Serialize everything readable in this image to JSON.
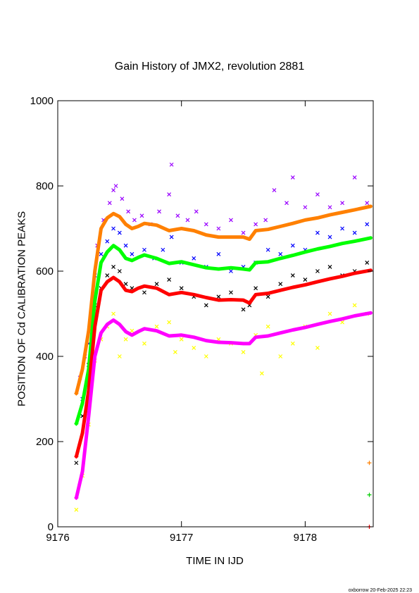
{
  "chart_data": {
    "type": "scatter",
    "title": "Gain History of JMX2, revolution 2881",
    "xlabel": "TIME IN IJD",
    "ylabel": "POSITION OF Cd CALIBRATION PEAKS",
    "xlim": [
      9176.0,
      9178.55
    ],
    "ylim": [
      0,
      1000
    ],
    "x_ticks": [
      9176,
      9177,
      9178
    ],
    "y_ticks": [
      0,
      200,
      400,
      600,
      800,
      1000
    ],
    "grid": false,
    "footer": "oxborrow 20-Feb-2025 22:23",
    "scatter_series": [
      {
        "color": "#9900ff",
        "marker": "x",
        "points": [
          [
            9176.18,
            350
          ],
          [
            9176.22,
            400
          ],
          [
            9176.27,
            470
          ],
          [
            9176.32,
            660
          ],
          [
            9176.37,
            720
          ],
          [
            9176.42,
            760
          ],
          [
            9176.45,
            790
          ],
          [
            9176.47,
            800
          ],
          [
            9176.52,
            770
          ],
          [
            9176.57,
            740
          ],
          [
            9176.62,
            720
          ],
          [
            9176.68,
            730
          ],
          [
            9176.75,
            710
          ],
          [
            9176.82,
            740
          ],
          [
            9176.9,
            780
          ],
          [
            9176.92,
            850
          ],
          [
            9176.97,
            730
          ],
          [
            9177.05,
            720
          ],
          [
            9177.12,
            740
          ],
          [
            9177.2,
            710
          ],
          [
            9177.3,
            700
          ],
          [
            9177.4,
            720
          ],
          [
            9177.5,
            690
          ],
          [
            9177.6,
            710
          ],
          [
            9177.68,
            720
          ],
          [
            9177.75,
            790
          ],
          [
            9177.85,
            760
          ],
          [
            9177.9,
            820
          ],
          [
            9178.0,
            750
          ],
          [
            9178.1,
            780
          ],
          [
            9178.2,
            750
          ],
          [
            9178.3,
            760
          ],
          [
            9178.4,
            820
          ],
          [
            9178.5,
            760
          ]
        ]
      },
      {
        "color": "#0000ff",
        "marker": "x",
        "points": [
          [
            9176.2,
            300
          ],
          [
            9176.25,
            430
          ],
          [
            9176.3,
            590
          ],
          [
            9176.35,
            640
          ],
          [
            9176.4,
            670
          ],
          [
            9176.45,
            700
          ],
          [
            9176.5,
            690
          ],
          [
            9176.55,
            660
          ],
          [
            9176.6,
            640
          ],
          [
            9176.7,
            650
          ],
          [
            9176.78,
            630
          ],
          [
            9176.85,
            650
          ],
          [
            9176.92,
            680
          ],
          [
            9177.0,
            620
          ],
          [
            9177.1,
            630
          ],
          [
            9177.2,
            610
          ],
          [
            9177.3,
            640
          ],
          [
            9177.4,
            600
          ],
          [
            9177.5,
            610
          ],
          [
            9177.6,
            620
          ],
          [
            9177.7,
            650
          ],
          [
            9177.8,
            640
          ],
          [
            9177.9,
            660
          ],
          [
            9178.0,
            650
          ],
          [
            9178.1,
            690
          ],
          [
            9178.2,
            680
          ],
          [
            9178.3,
            700
          ],
          [
            9178.4,
            690
          ],
          [
            9178.5,
            710
          ]
        ]
      },
      {
        "color": "#000000",
        "marker": "x",
        "points": [
          [
            9176.15,
            150
          ],
          [
            9176.2,
            260
          ],
          [
            9176.25,
            380
          ],
          [
            9176.3,
            520
          ],
          [
            9176.35,
            560
          ],
          [
            9176.4,
            590
          ],
          [
            9176.45,
            610
          ],
          [
            9176.5,
            600
          ],
          [
            9176.55,
            570
          ],
          [
            9176.6,
            560
          ],
          [
            9176.7,
            550
          ],
          [
            9176.8,
            570
          ],
          [
            9176.9,
            580
          ],
          [
            9177.0,
            560
          ],
          [
            9177.1,
            540
          ],
          [
            9177.2,
            520
          ],
          [
            9177.3,
            540
          ],
          [
            9177.4,
            550
          ],
          [
            9177.5,
            510
          ],
          [
            9177.55,
            520
          ],
          [
            9177.6,
            560
          ],
          [
            9177.7,
            540
          ],
          [
            9177.8,
            570
          ],
          [
            9177.9,
            590
          ],
          [
            9178.0,
            580
          ],
          [
            9178.1,
            600
          ],
          [
            9178.2,
            610
          ],
          [
            9178.3,
            590
          ],
          [
            9178.4,
            600
          ],
          [
            9178.5,
            620
          ]
        ]
      },
      {
        "color": "#ffff00",
        "marker": "x",
        "points": [
          [
            9176.15,
            40
          ],
          [
            9176.2,
            120
          ],
          [
            9176.25,
            240
          ],
          [
            9176.3,
            390
          ],
          [
            9176.35,
            440
          ],
          [
            9176.4,
            470
          ],
          [
            9176.45,
            500
          ],
          [
            9176.5,
            400
          ],
          [
            9176.55,
            440
          ],
          [
            9176.6,
            460
          ],
          [
            9176.7,
            430
          ],
          [
            9176.8,
            470
          ],
          [
            9176.9,
            480
          ],
          [
            9176.95,
            410
          ],
          [
            9177.0,
            440
          ],
          [
            9177.1,
            420
          ],
          [
            9177.2,
            400
          ],
          [
            9177.3,
            440
          ],
          [
            9177.4,
            430
          ],
          [
            9177.5,
            410
          ],
          [
            9177.6,
            450
          ],
          [
            9177.65,
            360
          ],
          [
            9177.7,
            470
          ],
          [
            9177.8,
            400
          ],
          [
            9177.9,
            430
          ],
          [
            9178.0,
            470
          ],
          [
            9178.1,
            420
          ],
          [
            9178.2,
            500
          ],
          [
            9178.3,
            480
          ],
          [
            9178.4,
            520
          ],
          [
            9178.5,
            500
          ]
        ]
      }
    ],
    "line_series": [
      {
        "color": "#ff8000",
        "marker": "+",
        "width": 5,
        "points": [
          [
            9176.15,
            313
          ],
          [
            9176.2,
            370
          ],
          [
            9176.25,
            460
          ],
          [
            9176.3,
            600
          ],
          [
            9176.35,
            700
          ],
          [
            9176.4,
            725
          ],
          [
            9176.45,
            735
          ],
          [
            9176.5,
            728
          ],
          [
            9176.55,
            710
          ],
          [
            9176.6,
            700
          ],
          [
            9176.65,
            705
          ],
          [
            9176.7,
            712
          ],
          [
            9176.8,
            708
          ],
          [
            9176.9,
            695
          ],
          [
            9177.0,
            700
          ],
          [
            9177.1,
            695
          ],
          [
            9177.2,
            685
          ],
          [
            9177.3,
            680
          ],
          [
            9177.4,
            680
          ],
          [
            9177.5,
            680
          ],
          [
            9177.55,
            675
          ],
          [
            9177.6,
            695
          ],
          [
            9177.7,
            698
          ],
          [
            9177.8,
            705
          ],
          [
            9177.9,
            712
          ],
          [
            9178.0,
            720
          ],
          [
            9178.1,
            725
          ],
          [
            9178.2,
            732
          ],
          [
            9178.3,
            738
          ],
          [
            9178.4,
            744
          ],
          [
            9178.53,
            752
          ]
        ]
      },
      {
        "color": "#00ff00",
        "marker": "+",
        "width": 5,
        "points": [
          [
            9176.15,
            242
          ],
          [
            9176.2,
            290
          ],
          [
            9176.25,
            370
          ],
          [
            9176.3,
            530
          ],
          [
            9176.35,
            620
          ],
          [
            9176.4,
            645
          ],
          [
            9176.45,
            660
          ],
          [
            9176.5,
            650
          ],
          [
            9176.55,
            630
          ],
          [
            9176.6,
            625
          ],
          [
            9176.65,
            632
          ],
          [
            9176.7,
            638
          ],
          [
            9176.8,
            630
          ],
          [
            9176.9,
            618
          ],
          [
            9177.0,
            622
          ],
          [
            9177.1,
            615
          ],
          [
            9177.2,
            608
          ],
          [
            9177.3,
            605
          ],
          [
            9177.4,
            608
          ],
          [
            9177.5,
            605
          ],
          [
            9177.55,
            603
          ],
          [
            9177.6,
            620
          ],
          [
            9177.7,
            622
          ],
          [
            9177.8,
            630
          ],
          [
            9177.9,
            637
          ],
          [
            9178.0,
            645
          ],
          [
            9178.1,
            652
          ],
          [
            9178.2,
            658
          ],
          [
            9178.3,
            665
          ],
          [
            9178.4,
            670
          ],
          [
            9178.53,
            678
          ]
        ]
      },
      {
        "color": "#ff0000",
        "marker": "+",
        "width": 5,
        "points": [
          [
            9176.15,
            165
          ],
          [
            9176.2,
            220
          ],
          [
            9176.25,
            320
          ],
          [
            9176.3,
            470
          ],
          [
            9176.35,
            555
          ],
          [
            9176.4,
            575
          ],
          [
            9176.45,
            585
          ],
          [
            9176.5,
            575
          ],
          [
            9176.55,
            555
          ],
          [
            9176.6,
            552
          ],
          [
            9176.65,
            560
          ],
          [
            9176.7,
            565
          ],
          [
            9176.8,
            560
          ],
          [
            9176.9,
            545
          ],
          [
            9177.0,
            550
          ],
          [
            9177.1,
            545
          ],
          [
            9177.2,
            538
          ],
          [
            9177.3,
            532
          ],
          [
            9177.4,
            533
          ],
          [
            9177.5,
            532
          ],
          [
            9177.55,
            525
          ],
          [
            9177.6,
            545
          ],
          [
            9177.7,
            548
          ],
          [
            9177.8,
            555
          ],
          [
            9177.9,
            562
          ],
          [
            9178.0,
            568
          ],
          [
            9178.1,
            575
          ],
          [
            9178.2,
            582
          ],
          [
            9178.3,
            588
          ],
          [
            9178.4,
            595
          ],
          [
            9178.53,
            602
          ]
        ]
      },
      {
        "color": "#ff00ff",
        "marker": "+",
        "width": 5,
        "points": [
          [
            9176.15,
            68
          ],
          [
            9176.2,
            130
          ],
          [
            9176.25,
            260
          ],
          [
            9176.3,
            400
          ],
          [
            9176.35,
            455
          ],
          [
            9176.4,
            475
          ],
          [
            9176.45,
            485
          ],
          [
            9176.5,
            475
          ],
          [
            9176.55,
            458
          ],
          [
            9176.6,
            450
          ],
          [
            9176.65,
            458
          ],
          [
            9176.7,
            465
          ],
          [
            9176.8,
            460
          ],
          [
            9176.9,
            448
          ],
          [
            9177.0,
            450
          ],
          [
            9177.1,
            445
          ],
          [
            9177.2,
            437
          ],
          [
            9177.3,
            433
          ],
          [
            9177.4,
            432
          ],
          [
            9177.5,
            430
          ],
          [
            9177.55,
            430
          ],
          [
            9177.6,
            445
          ],
          [
            9177.7,
            448
          ],
          [
            9177.8,
            455
          ],
          [
            9177.9,
            462
          ],
          [
            9178.0,
            468
          ],
          [
            9178.1,
            475
          ],
          [
            9178.2,
            482
          ],
          [
            9178.3,
            488
          ],
          [
            9178.4,
            495
          ],
          [
            9178.53,
            502
          ]
        ]
      }
    ],
    "stray_points": [
      {
        "color": "#ff8000",
        "marker": "+",
        "x": 9178.53,
        "y": 150
      },
      {
        "color": "#00cc00",
        "marker": "+",
        "x": 9178.53,
        "y": 75
      },
      {
        "color": "#ff0000",
        "marker": "+",
        "x": 9178.53,
        "y": 0
      }
    ]
  }
}
